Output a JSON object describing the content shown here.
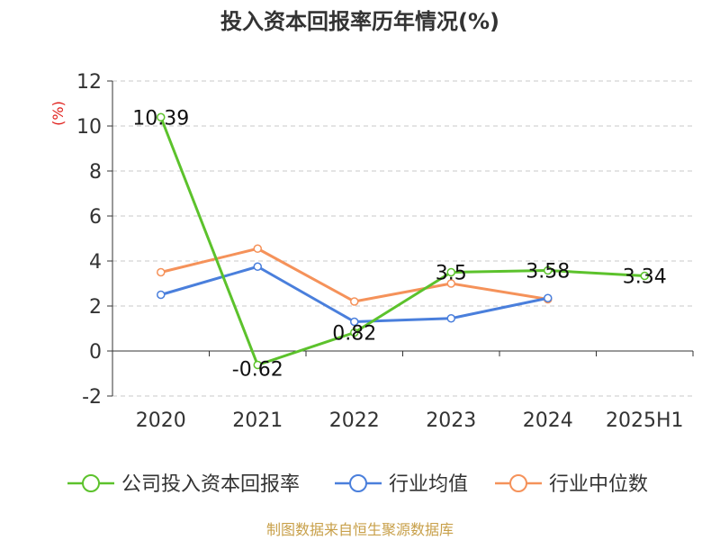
{
  "chart_data": {
    "type": "line",
    "title": "投入资本回报率历年情况(%)",
    "ylabel": "(%)",
    "categories": [
      "2020",
      "2021",
      "2022",
      "2023",
      "2024",
      "2025H1"
    ],
    "ylim": [
      -2,
      12
    ],
    "yticks": [
      -2,
      0,
      2,
      4,
      6,
      8,
      10,
      12
    ],
    "grid": true,
    "legend_position": "bottom",
    "series": [
      {
        "name": "公司投入资本回报率",
        "color": "#5cc22c",
        "values": [
          10.39,
          -0.62,
          0.82,
          3.5,
          3.58,
          3.34
        ],
        "labels": [
          "10.39",
          "-0.62",
          "0.82",
          "3.5",
          "3.58",
          "3.34"
        ]
      },
      {
        "name": "行业均值",
        "color": "#4a7fdc",
        "values": [
          2.5,
          3.75,
          1.3,
          1.45,
          2.35,
          null
        ]
      },
      {
        "name": "行业中位数",
        "color": "#f5925a",
        "values": [
          3.5,
          4.55,
          2.2,
          3.0,
          2.3,
          null
        ]
      }
    ]
  },
  "footer": {
    "source": "制图数据来自恒生聚源数据库"
  }
}
